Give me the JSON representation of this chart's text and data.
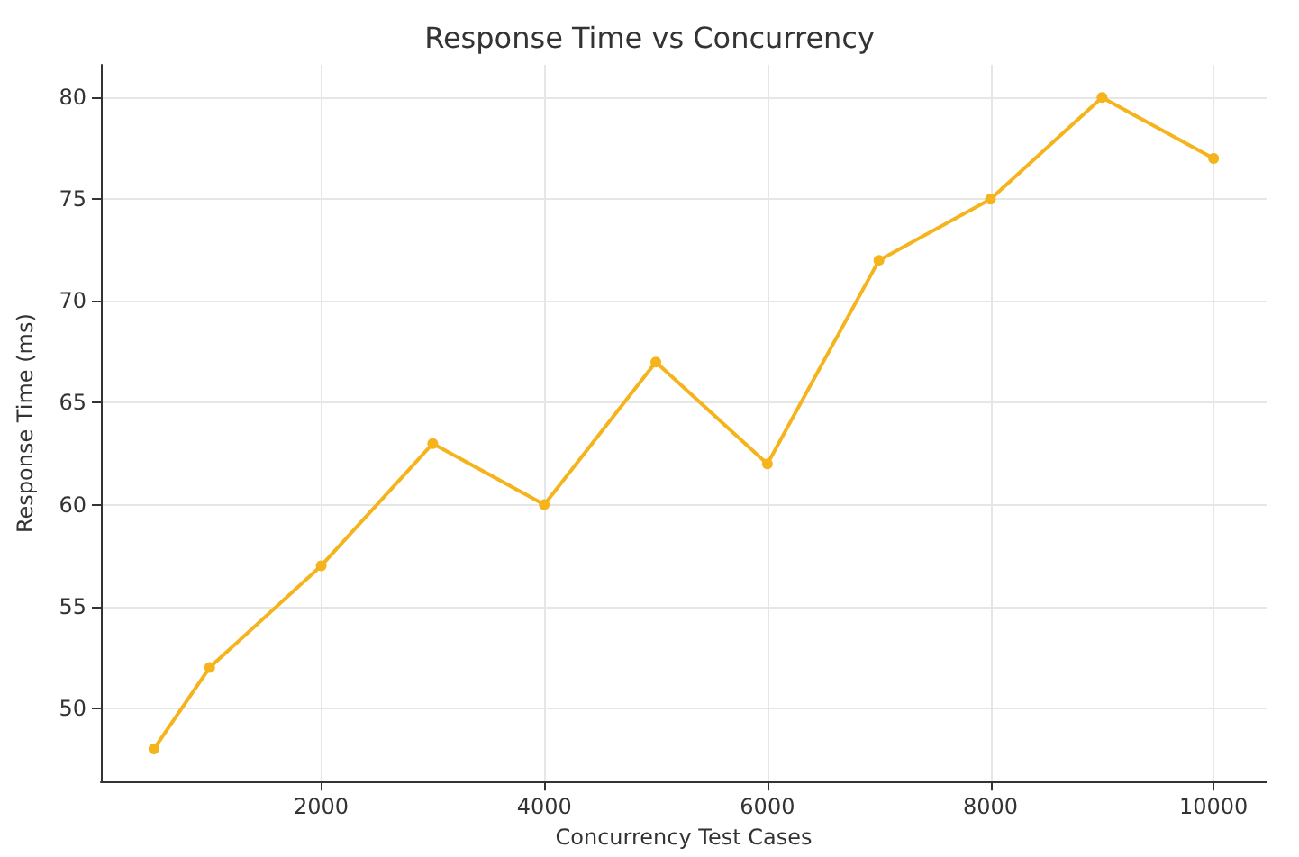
{
  "chart_data": {
    "type": "line",
    "title": "Response Time vs Concurrency",
    "xlabel": "Concurrency Test Cases",
    "ylabel": "Response Time (ms)",
    "x": [
      500,
      1000,
      2000,
      3000,
      4000,
      5000,
      6000,
      7000,
      8000,
      9000,
      10000
    ],
    "series": [
      {
        "color": "#f5b31c",
        "values": [
          48,
          52,
          57,
          63,
          60,
          67,
          62,
          72,
          75,
          80,
          77
        ]
      }
    ],
    "xlim": [
      25,
      10475
    ],
    "xticks": [
      2000,
      4000,
      6000,
      8000,
      10000
    ],
    "ylim": [
      46.4,
      81.6
    ],
    "yticks": [
      50,
      55,
      60,
      65,
      70,
      75,
      80
    ],
    "grid": true,
    "marker": "circle",
    "line_style": "solid"
  }
}
